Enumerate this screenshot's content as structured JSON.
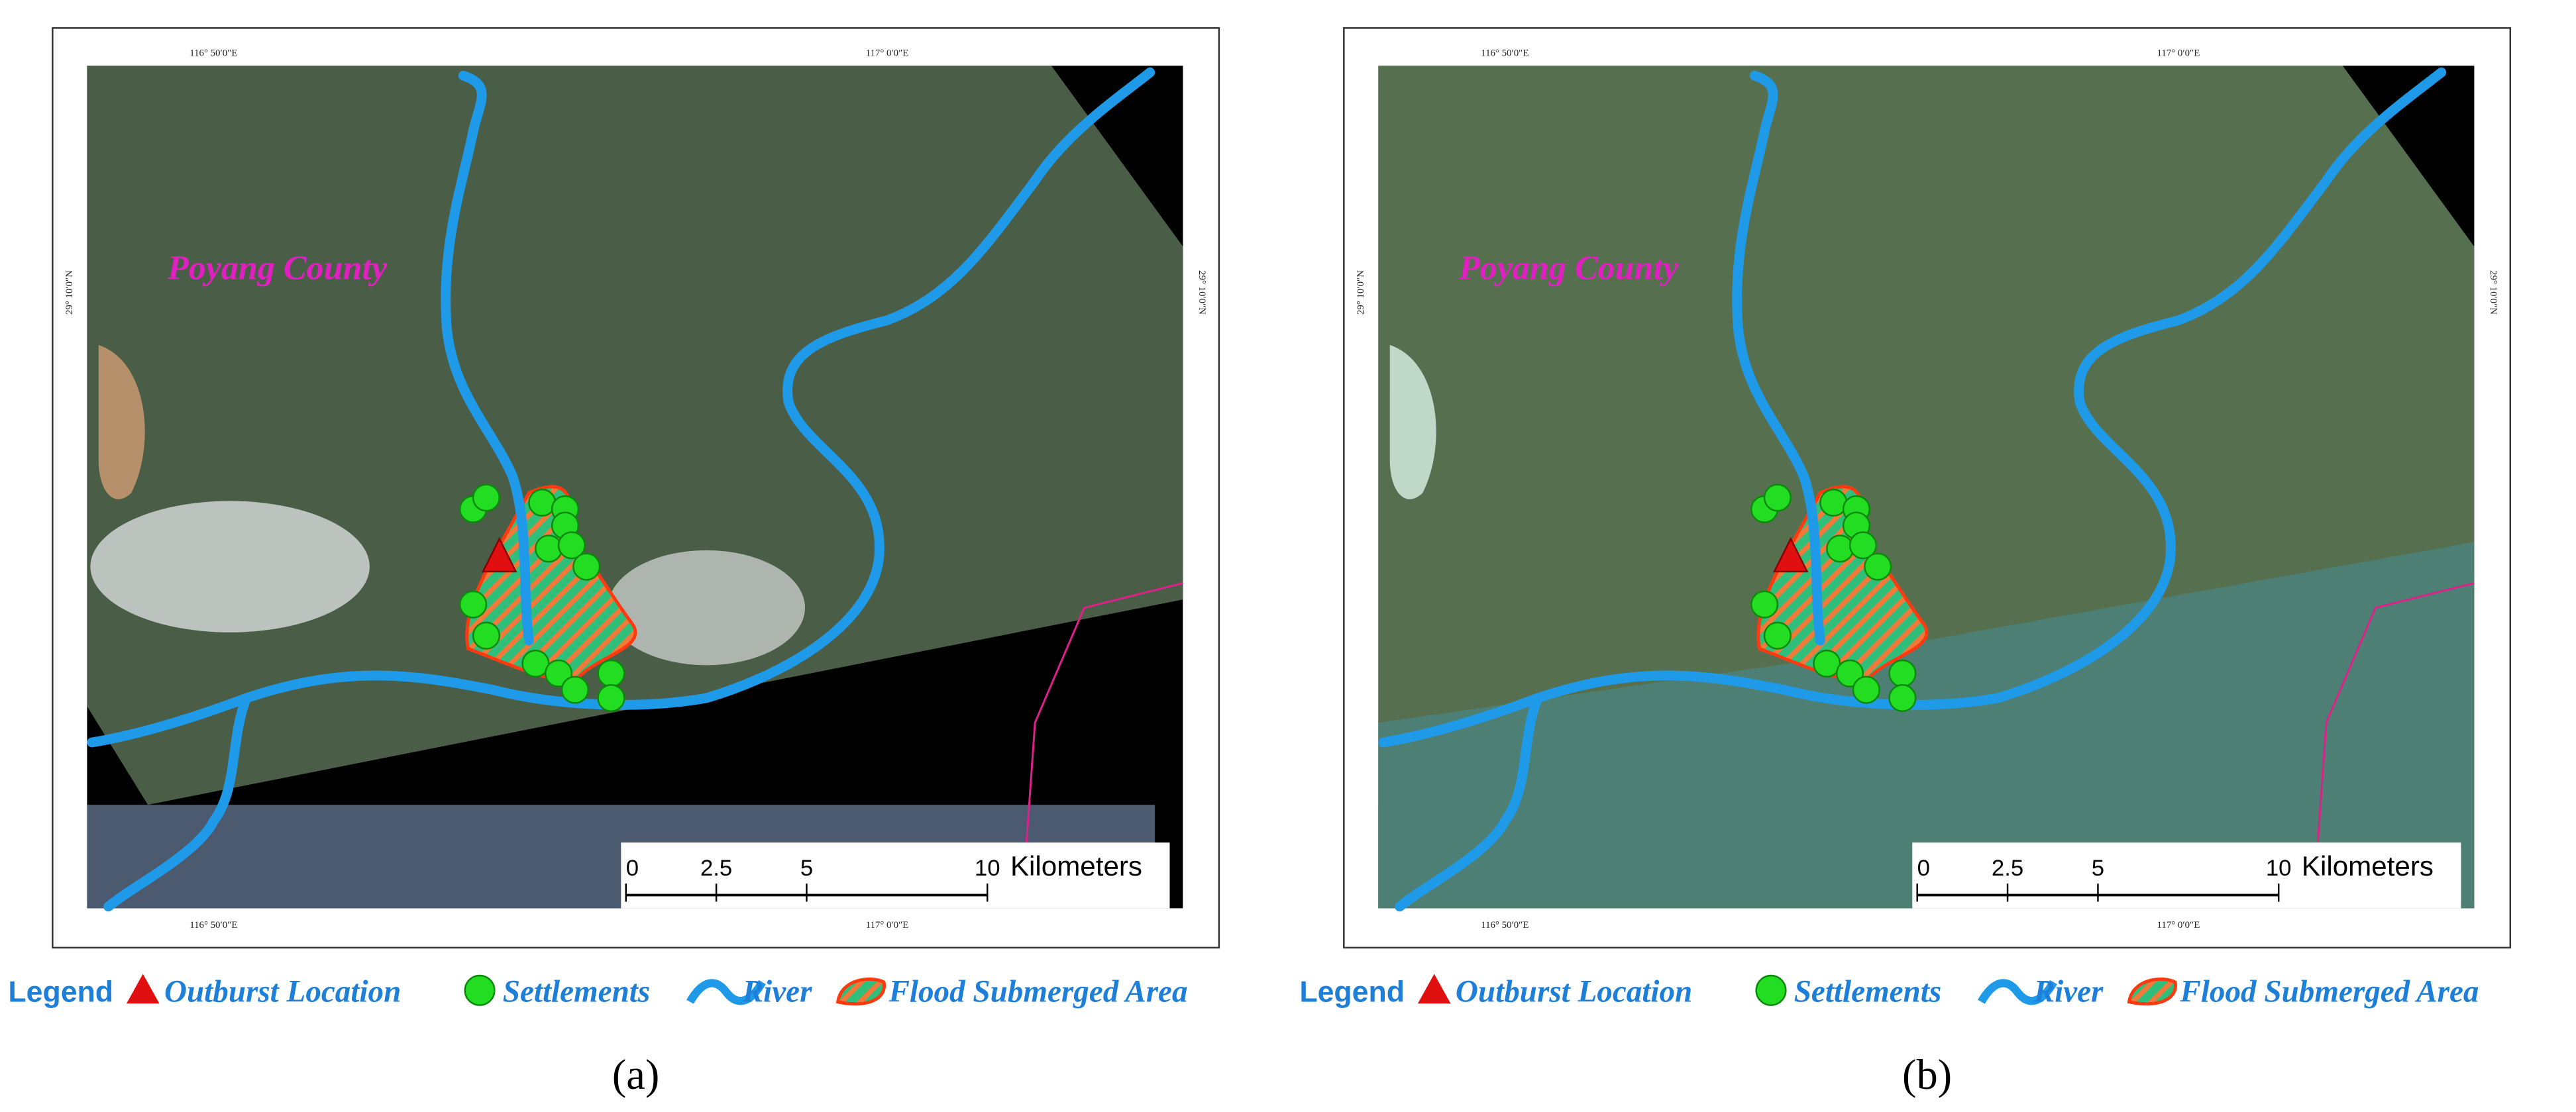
{
  "panels": [
    {
      "caption": "(a)",
      "place_label": "Poyang County",
      "lon_labels": [
        "116° 50′0″E",
        "117° 0′0″E"
      ],
      "lat_label": "29° 10′0″N",
      "scale": {
        "ticks": [
          0,
          2.5,
          5,
          10
        ],
        "unit": "Kilometers"
      }
    },
    {
      "caption": "(b)",
      "place_label": "Poyang County",
      "lon_labels": [
        "116° 50′0″E",
        "117° 0′0″E"
      ],
      "lat_label": "29° 10′0″N",
      "scale": {
        "ticks": [
          0,
          2.5,
          5,
          10
        ],
        "unit": "Kilometers"
      }
    }
  ],
  "legend": {
    "title": "Legend",
    "items": [
      "Outburst Location",
      "Settlements",
      "River",
      "Flood Submerged Area"
    ]
  }
}
